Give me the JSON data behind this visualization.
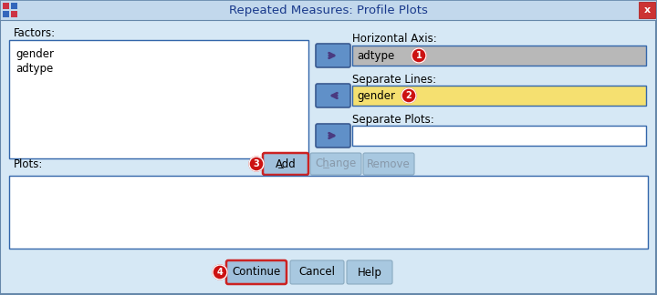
{
  "title": "Repeated Measures: Profile Plots",
  "bg_color": "#d6e8f5",
  "title_bar_color": "#d6e8f5",
  "title_text_color": "#1a3a8c",
  "factors_label": "Factors:",
  "factors_items": [
    "gender",
    "adtype"
  ],
  "horiz_axis_label": "Horizontal Axis:",
  "horiz_axis_value": "adtype",
  "horiz_axis_bg": "#b8b8b8",
  "sep_lines_label": "Separate Lines:",
  "sep_lines_value": "gender",
  "sep_lines_bg": "#f5e070",
  "sep_plots_label": "Separate Plots:",
  "sep_plots_bg": "#ffffff",
  "plots_label": "Plots:",
  "btn_add": "Add",
  "btn_change": "Change",
  "btn_remove": "Remove",
  "btn_continue": "Continue",
  "btn_cancel": "Cancel",
  "btn_help": "Help",
  "arrow_btn_color": "#6090c8",
  "arrow_color": "#4a3a80",
  "circle_color": "#cc1111",
  "circle_text_color": "#ffffff",
  "listbox_bg": "#ffffff",
  "listbox_border": "#3366aa",
  "field_border": "#3366aa",
  "add_btn_bg": "#a0c0dc",
  "add_btn_border": "#cc2222",
  "normal_btn_bg": "#a8c8e0",
  "normal_btn_border": "#8aaac0",
  "grayed_btn_color": "#8899aa",
  "continue_btn_border": "#cc2222",
  "outer_border": "#6688aa",
  "icon_colors": [
    "#cc3333",
    "#3366cc",
    "#ffffff"
  ]
}
